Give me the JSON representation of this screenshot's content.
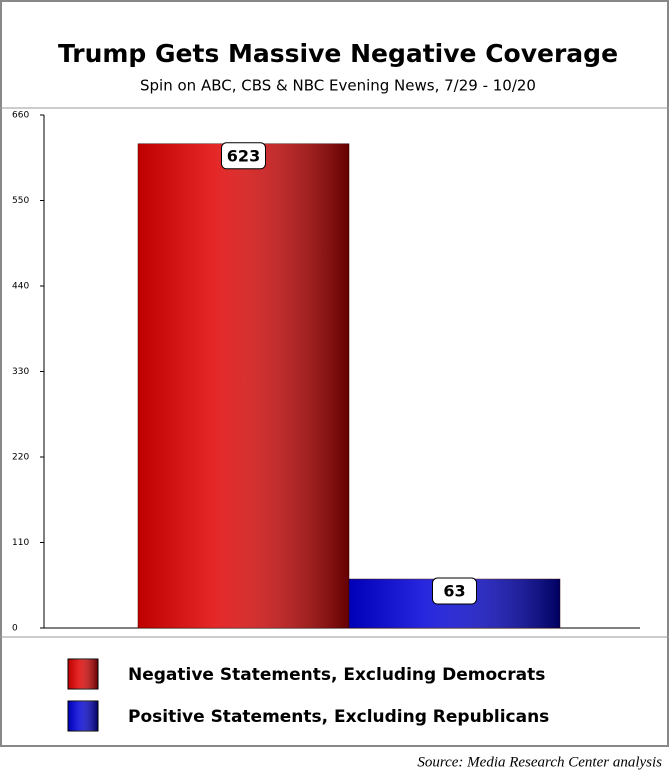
{
  "chart_data": {
    "type": "bar",
    "title": "Trump Gets Massive Negative Coverage",
    "subtitle": "Spin on ABC, CBS & NBC Evening News, 7/29 - 10/20",
    "series": [
      {
        "name": "Negative Statements, Excluding Democrats",
        "color": "#e00000",
        "values": [
          623
        ]
      },
      {
        "name": "Positive Statements, Excluding Republicans",
        "color": "#0000d8",
        "values": [
          63
        ]
      }
    ],
    "ylim": [
      0,
      660
    ],
    "yticks": [
      0,
      110,
      220,
      330,
      440,
      550,
      660
    ],
    "source": "Source: Media Research Center analysis"
  }
}
